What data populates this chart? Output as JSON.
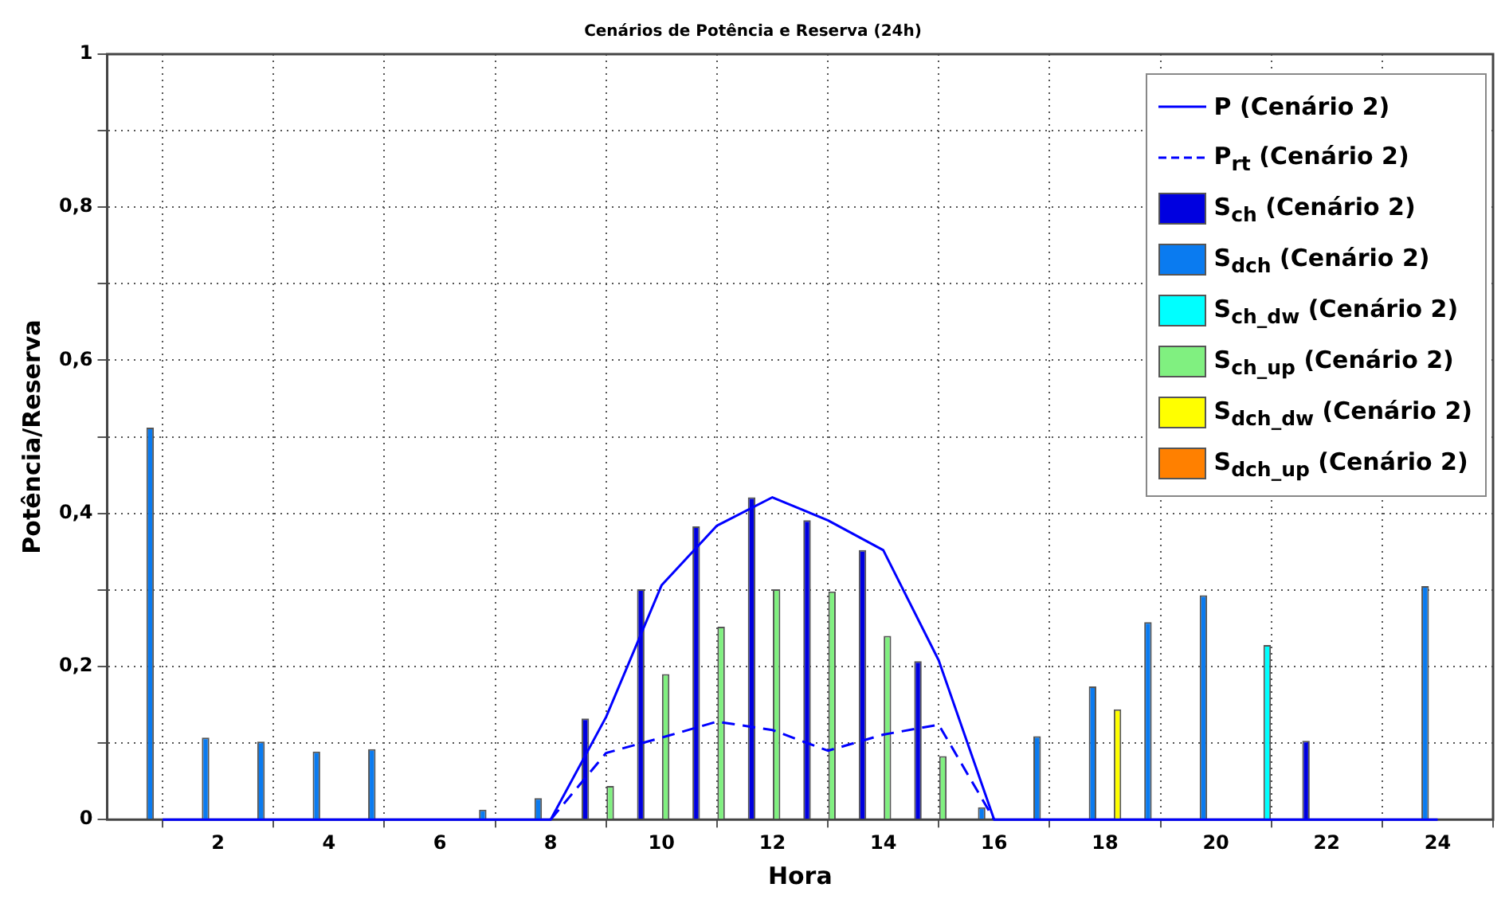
{
  "chart_data": {
    "type": "bar",
    "title": "Cenários de Potência e Reserva (24h)",
    "xlabel": "Hora",
    "ylabel": "Potência/Reserva",
    "x": [
      1,
      2,
      3,
      4,
      5,
      6,
      7,
      8,
      9,
      10,
      11,
      12,
      13,
      14,
      15,
      16,
      17,
      18,
      19,
      20,
      21,
      22,
      23,
      24
    ],
    "xlim": [
      0,
      25
    ],
    "xticks": [
      2,
      4,
      6,
      8,
      10,
      12,
      14,
      16,
      18,
      20,
      22,
      24
    ],
    "ylim": [
      0,
      1
    ],
    "yticks": [
      0,
      {
        "value": 0.1,
        "label": null
      },
      {
        "value": 0.2,
        "label": "0,2"
      },
      {
        "value": 0.3,
        "label": null
      },
      {
        "value": 0.4,
        "label": "0,4"
      },
      {
        "value": 0.5,
        "label": null
      },
      {
        "value": 0.6,
        "label": "0,6"
      },
      {
        "value": 0.7,
        "label": null
      },
      {
        "value": 0.8,
        "label": "0,8"
      },
      {
        "value": 0.9,
        "label": null
      },
      1
    ],
    "grid": true,
    "legend": "top right",
    "series": [
      {
        "name": "P (Cenário 2)",
        "type": "line",
        "color": "#0000ff",
        "line_style": "solid",
        "values": [
          0,
          0,
          0,
          0,
          0,
          0,
          0,
          0,
          0.134,
          0.306,
          0.384,
          0.421,
          0.391,
          0.352,
          0.208,
          0,
          0,
          0,
          0,
          0,
          0,
          0,
          0,
          0
        ]
      },
      {
        "name": "P$_{rt}$ (Cenário 2)",
        "type": "line",
        "color": "#0000ff",
        "line_style": "dashed",
        "values": [
          null,
          null,
          null,
          null,
          null,
          null,
          null,
          0,
          0.087,
          0.107,
          0.128,
          0.117,
          0.09,
          0.111,
          0.124,
          0,
          null,
          null,
          null,
          null,
          null,
          null,
          null,
          null
        ]
      },
      {
        "name": "S$_{ch}$ (Cenário 2)",
        "color": "#0000e0",
        "values": [
          0,
          0,
          0,
          0,
          0,
          0,
          0,
          0,
          0.132,
          0.301,
          0.383,
          0.421,
          0.391,
          0.352,
          0.207,
          0,
          0,
          0,
          0,
          0,
          0,
          0.103,
          0,
          0
        ]
      },
      {
        "name": "S$_{dch}$ (Cenário 2)",
        "color": "#0a7bf0",
        "values": [
          0.512,
          0.107,
          0.102,
          0.089,
          0.092,
          0,
          0.013,
          0.028,
          0,
          0,
          0,
          0,
          0,
          0,
          0,
          0.016,
          0.109,
          0.174,
          0.258,
          0.293,
          0,
          0,
          0,
          0.305
        ]
      },
      {
        "name": "S$_{ch_dw}$ (Cenário 2)",
        "color": "#00ffff",
        "values": [
          0,
          0,
          0,
          0,
          0,
          0,
          0,
          0,
          0,
          0,
          0,
          0,
          0,
          0,
          0,
          0,
          0,
          0,
          0,
          0,
          0.228,
          0,
          0,
          0
        ]
      },
      {
        "name": "S$_{ch_up}$ (Cenário 2)",
        "color": "#80f080",
        "values": [
          0,
          0,
          0,
          0,
          0,
          0,
          0,
          0,
          0.044,
          0.19,
          0.252,
          0.301,
          0.298,
          0.24,
          0.083,
          0,
          0,
          0,
          0,
          0,
          0,
          0,
          0,
          0
        ]
      },
      {
        "name": "S$_{dch_dw}$ (Cenário 2)",
        "color": "#ffff00",
        "values": [
          0,
          0,
          0,
          0,
          0,
          0,
          0,
          0,
          0,
          0,
          0,
          0,
          0,
          0,
          0,
          0,
          0,
          0.144,
          0,
          0,
          0,
          0,
          0,
          0
        ]
      },
      {
        "name": "S$_{dch_up}$ (Cenário 2)",
        "color": "#ff8000",
        "values": [
          0,
          0,
          0,
          0,
          0,
          0,
          0,
          0,
          0,
          0,
          0,
          0,
          0,
          0,
          0,
          0,
          0,
          0,
          0,
          0,
          0,
          0,
          0,
          0
        ]
      }
    ]
  }
}
